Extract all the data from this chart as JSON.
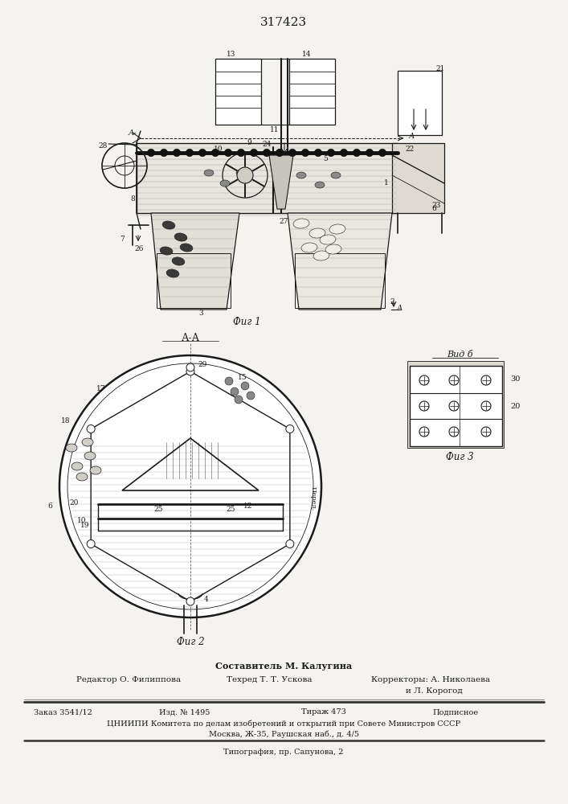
{
  "title": "317423",
  "bg_color": "#f5f3ef",
  "line_color": "#1a1a1a",
  "fig1_caption": "Фиг 1",
  "fig2_caption": "Фиг 2",
  "fig3_caption": "Фиг 3",
  "view_label": "Вид б",
  "footer_sestavitel": "Составитель М. Калугина",
  "footer_editor": "Редактор О. Филиппова",
  "footer_tekhred": "Техред Т. Т. Ускова",
  "footer_korr": "Корректоры: А. Николаева",
  "footer_korr2": "и Л. Корогод",
  "footer_zakaz": "Заказ 3541/12",
  "footer_izd": "Изд. № 1495",
  "footer_tirazh": "Тираж 473",
  "footer_podp": "Подписное",
  "footer_cniip": "ЦНИИПИ Комитета по делам изобретений и открытий при Совете Министров СССР",
  "footer_addr": "Москва, Ж-35, Раушская наб., д. 4/5",
  "footer_tip": "Типография, пр. Сапунова, 2"
}
